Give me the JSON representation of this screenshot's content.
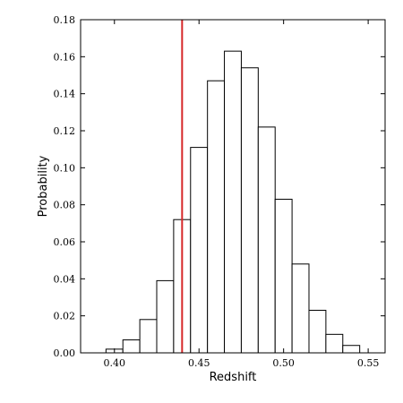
{
  "chart_data": {
    "type": "bar",
    "title": "",
    "xlabel": "Redshift",
    "ylabel": "Probability",
    "xlim": [
      0.38,
      0.56
    ],
    "ylim": [
      0.0,
      0.18
    ],
    "grid": false,
    "bin_width": 0.01,
    "bins": [
      {
        "left": 0.395,
        "value": 0.002
      },
      {
        "left": 0.405,
        "value": 0.007
      },
      {
        "left": 0.415,
        "value": 0.018
      },
      {
        "left": 0.425,
        "value": 0.039
      },
      {
        "left": 0.435,
        "value": 0.072
      },
      {
        "left": 0.445,
        "value": 0.111
      },
      {
        "left": 0.455,
        "value": 0.147
      },
      {
        "left": 0.465,
        "value": 0.163
      },
      {
        "left": 0.475,
        "value": 0.154
      },
      {
        "left": 0.485,
        "value": 0.122
      },
      {
        "left": 0.495,
        "value": 0.083
      },
      {
        "left": 0.505,
        "value": 0.048
      },
      {
        "left": 0.515,
        "value": 0.023
      },
      {
        "left": 0.525,
        "value": 0.01
      },
      {
        "left": 0.535,
        "value": 0.004
      }
    ],
    "reference_line": {
      "x": 0.44,
      "color": "#d62728"
    },
    "x_ticks": [
      0.4,
      0.45,
      0.5,
      0.55
    ],
    "x_tick_labels": [
      "0.40",
      "0.45",
      "0.50",
      "0.55"
    ],
    "y_ticks": [
      0.0,
      0.02,
      0.04,
      0.06,
      0.08,
      0.1,
      0.12,
      0.14,
      0.16,
      0.18
    ],
    "y_tick_labels": [
      "0.00",
      "0.02",
      "0.04",
      "0.06",
      "0.08",
      "0.10",
      "0.12",
      "0.14",
      "0.16",
      "0.18"
    ]
  }
}
